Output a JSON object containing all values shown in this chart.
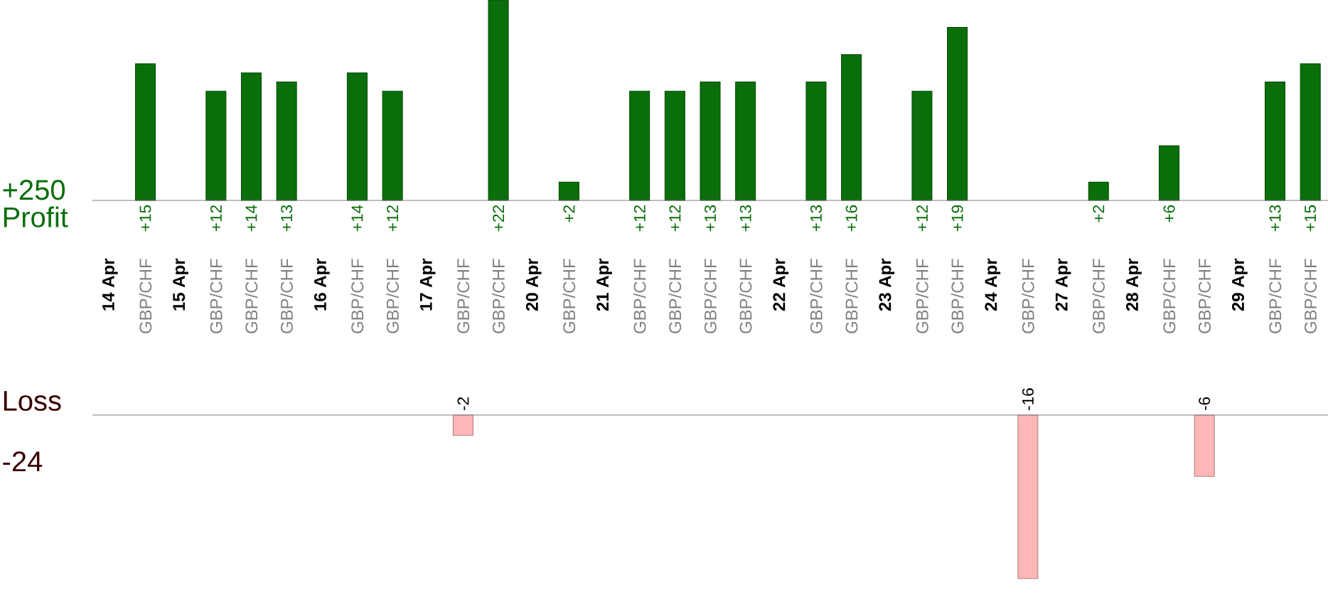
{
  "chart_data": [
    {
      "type": "bar",
      "ylabel": "Profit",
      "annotations": [
        "+250"
      ],
      "color": "#0a6e0a",
      "categories": [
        "14 Apr",
        "GBP/CHF",
        "15 Apr",
        "GBP/CHF",
        "GBP/CHF",
        "GBP/CHF",
        "16 Apr",
        "GBP/CHF",
        "GBP/CHF",
        "17 Apr",
        "GBP/CHF",
        "GBP/CHF",
        "20 Apr",
        "GBP/CHF",
        "21 Apr",
        "GBP/CHF",
        "GBP/CHF",
        "GBP/CHF",
        "GBP/CHF",
        "22 Apr",
        "GBP/CHF",
        "GBP/CHF",
        "23 Apr",
        "GBP/CHF",
        "GBP/CHF",
        "24 Apr",
        "GBP/CHF",
        "27 Apr",
        "GBP/CHF",
        "28 Apr",
        "GBP/CHF",
        "GBP/CHF",
        "29 Apr",
        "GBP/CHF",
        "GBP/CHF"
      ],
      "values": [
        null,
        15,
        null,
        12,
        14,
        13,
        null,
        14,
        12,
        null,
        null,
        22,
        null,
        2,
        null,
        12,
        12,
        13,
        13,
        null,
        13,
        16,
        null,
        12,
        19,
        null,
        null,
        null,
        2,
        null,
        6,
        null,
        null,
        13,
        15
      ],
      "value_labels": [
        null,
        "+15",
        null,
        "+12",
        "+14",
        "+13",
        null,
        "+14",
        "+12",
        null,
        null,
        "+22",
        null,
        "+2",
        null,
        "+12",
        "+12",
        "+13",
        "+13",
        null,
        "+13",
        "+16",
        null,
        "+12",
        "+19",
        null,
        null,
        null,
        "+2",
        null,
        "+6",
        null,
        null,
        "+13",
        "+15"
      ]
    },
    {
      "type": "bar",
      "ylabel": "Loss",
      "annotations": [
        "-24"
      ],
      "color": "#ffb6b6",
      "categories": [
        null,
        null,
        null,
        null,
        null,
        null,
        null,
        null,
        null,
        null,
        null,
        null,
        null,
        null,
        null,
        null,
        null,
        null,
        null,
        null,
        null,
        null,
        null,
        null,
        null,
        null,
        null,
        null,
        null,
        null,
        null,
        null,
        null,
        null,
        null
      ],
      "values": [
        null,
        null,
        null,
        null,
        null,
        null,
        null,
        null,
        null,
        null,
        -2,
        null,
        null,
        null,
        null,
        null,
        null,
        null,
        null,
        null,
        null,
        null,
        null,
        null,
        null,
        null,
        -16,
        null,
        null,
        null,
        null,
        -6,
        null,
        null,
        null
      ],
      "value_labels": [
        null,
        null,
        null,
        null,
        null,
        null,
        null,
        null,
        null,
        null,
        "-2",
        null,
        null,
        null,
        null,
        null,
        null,
        null,
        null,
        null,
        null,
        null,
        null,
        null,
        null,
        null,
        "-16",
        null,
        null,
        null,
        null,
        "-6",
        null,
        null,
        null
      ]
    }
  ]
}
